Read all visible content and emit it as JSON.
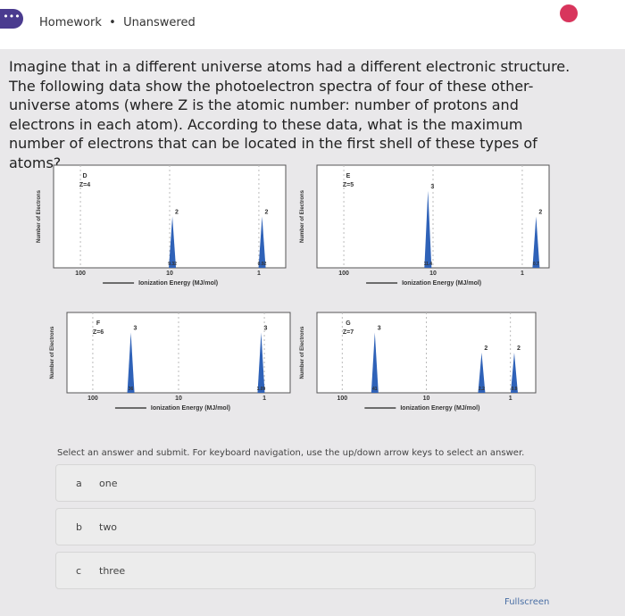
{
  "header": {
    "section": "Homework",
    "status": "Unanswered"
  },
  "question": "Imagine that in a different universe atoms had a different electronic structure. The following data show the photoelectron spectra of four of these other-universe atoms (where Z is the atomic number: number of protons and electrons in each atom). According to these data, what is the maximum number of electrons that can be located in the first shell of these types of atoms?",
  "panels": [
    {
      "name": "D",
      "z_label": "Z=4",
      "y_label": "Number of Electrons",
      "x_label": "Ionization Energy (MJ/mol)",
      "xticks": [
        100,
        10,
        1
      ],
      "xlim": [
        200,
        0.5
      ],
      "ylim": [
        0,
        4
      ],
      "peaks": [
        {
          "energy": 9.32,
          "electrons": 2
        },
        {
          "energy": 0.92,
          "electrons": 2
        }
      ]
    },
    {
      "name": "E",
      "z_label": "Z=5",
      "y_label": "Number of Electrons",
      "x_label": "Ionization Energy (MJ/mol)",
      "xticks": [
        100,
        10,
        1
      ],
      "xlim": [
        200,
        0.5
      ],
      "ylim": [
        0,
        4
      ],
      "peaks": [
        {
          "energy": 11.4,
          "electrons": 3
        },
        {
          "energy": 0.7,
          "electrons": 2
        }
      ]
    },
    {
      "name": "F",
      "z_label": "Z=6",
      "y_label": "Number of Electrons",
      "x_label": "Ionization Energy (MJ/mol)",
      "xticks": [
        100,
        10,
        1
      ],
      "xlim": [
        200,
        0.5
      ],
      "ylim": [
        0,
        4
      ],
      "peaks": [
        {
          "energy": 36,
          "electrons": 3
        },
        {
          "energy": 1.09,
          "electrons": 3
        }
      ]
    },
    {
      "name": "G",
      "z_label": "Z=7",
      "y_label": "Number of Electrons",
      "x_label": "Ionization Energy (MJ/mol)",
      "xticks": [
        100,
        10,
        1
      ],
      "xlim": [
        200,
        0.5
      ],
      "ylim": [
        0,
        4
      ],
      "peaks": [
        {
          "energy": 41,
          "electrons": 3
        },
        {
          "energy": 2.2,
          "electrons": 2
        },
        {
          "energy": 0.9,
          "electrons": 2
        }
      ]
    }
  ],
  "instructions": "Select an answer and submit. For keyboard navigation, use the up/down arrow keys to select an answer.",
  "options": [
    {
      "letter": "a",
      "text": "one"
    },
    {
      "letter": "b",
      "text": "two"
    },
    {
      "letter": "c",
      "text": "three"
    }
  ],
  "fullscreen": "Fullscreen"
}
